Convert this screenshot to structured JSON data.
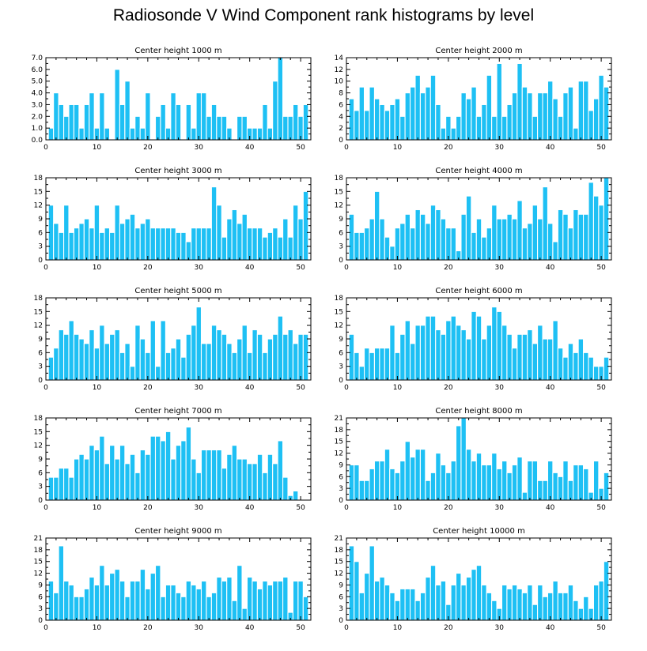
{
  "figure_title": "Radiosonde V Wind Component rank histograms by level",
  "chart_data": [
    {
      "type": "bar",
      "title": "Center height 1000 m",
      "x_start": 1,
      "xlim": [
        0,
        52
      ],
      "xticks": [
        0,
        10,
        20,
        30,
        40,
        50
      ],
      "ylim": [
        0,
        7
      ],
      "yticks": [
        0,
        1,
        2,
        3,
        4,
        5,
        6,
        7
      ],
      "ytick_labels": [
        "0.0",
        "1.0",
        "2.0",
        "3.0",
        "4.0",
        "5.0",
        "6.0",
        "7.0"
      ],
      "values": [
        1,
        4,
        3,
        2,
        3,
        3,
        1,
        3,
        4,
        1,
        4,
        1,
        0,
        6,
        3,
        5,
        1,
        2,
        1,
        4,
        0,
        2,
        3,
        1,
        4,
        3,
        0,
        3,
        1,
        4,
        4,
        2,
        3,
        2,
        2,
        1,
        0,
        2,
        2,
        1,
        1,
        1,
        3,
        1,
        5,
        7,
        2,
        2,
        3,
        2,
        3
      ]
    },
    {
      "type": "bar",
      "title": "Center height 2000 m",
      "x_start": 1,
      "xlim": [
        0,
        52
      ],
      "xticks": [
        0,
        10,
        20,
        30,
        40,
        50
      ],
      "ylim": [
        0,
        14
      ],
      "yticks": [
        0,
        2,
        4,
        6,
        8,
        10,
        12,
        14
      ],
      "ytick_labels": [
        "0",
        "2",
        "4",
        "6",
        "8",
        "10",
        "12",
        "14"
      ],
      "values": [
        7,
        5,
        9,
        5,
        9,
        7,
        6,
        5,
        6,
        7,
        4,
        8,
        9,
        11,
        8,
        9,
        11,
        6,
        2,
        4,
        2,
        4,
        8,
        7,
        9,
        4,
        6,
        11,
        4,
        13,
        4,
        6,
        8,
        13,
        9,
        8,
        4,
        8,
        8,
        10,
        7,
        4,
        8,
        9,
        2,
        10,
        10,
        5,
        7,
        11,
        9
      ]
    },
    {
      "type": "bar",
      "title": "Center height 3000 m",
      "x_start": 1,
      "xlim": [
        0,
        52
      ],
      "xticks": [
        0,
        10,
        20,
        30,
        40,
        50
      ],
      "ylim": [
        0,
        18
      ],
      "yticks": [
        0,
        3,
        6,
        9,
        12,
        15,
        18
      ],
      "ytick_labels": [
        "0",
        "3",
        "6",
        "9",
        "12",
        "15",
        "18"
      ],
      "values": [
        12,
        8,
        6,
        12,
        6,
        7,
        8,
        9,
        7,
        12,
        6,
        7,
        6,
        12,
        8,
        9,
        10,
        7,
        8,
        9,
        7,
        7,
        7,
        7,
        7,
        6,
        6,
        4,
        7,
        7,
        7,
        7,
        16,
        12,
        5,
        9,
        11,
        8,
        10,
        7,
        7,
        7,
        5,
        6,
        7,
        5,
        9,
        5,
        12,
        9,
        15
      ]
    },
    {
      "type": "bar",
      "title": "Center height 4000 m",
      "x_start": 1,
      "xlim": [
        0,
        52
      ],
      "xticks": [
        0,
        10,
        20,
        30,
        40,
        50
      ],
      "ylim": [
        0,
        18
      ],
      "yticks": [
        0,
        3,
        6,
        9,
        12,
        15,
        18
      ],
      "ytick_labels": [
        "0",
        "3",
        "6",
        "9",
        "12",
        "15",
        "18"
      ],
      "values": [
        10,
        6,
        6,
        7,
        9,
        15,
        9,
        5,
        3,
        7,
        8,
        10,
        7,
        11,
        10,
        8,
        12,
        11,
        9,
        7,
        7,
        2,
        10,
        14,
        6,
        9,
        5,
        7,
        12,
        9,
        9,
        10,
        9,
        13,
        7,
        8,
        12,
        9,
        16,
        8,
        4,
        11,
        10,
        7,
        11,
        10,
        10,
        17,
        14,
        12,
        18
      ]
    },
    {
      "type": "bar",
      "title": "Center height 5000 m",
      "x_start": 1,
      "xlim": [
        0,
        52
      ],
      "xticks": [
        0,
        10,
        20,
        30,
        40,
        50
      ],
      "ylim": [
        0,
        18
      ],
      "yticks": [
        0,
        3,
        6,
        9,
        12,
        15,
        18
      ],
      "ytick_labels": [
        "0",
        "3",
        "6",
        "9",
        "12",
        "15",
        "18"
      ],
      "values": [
        5,
        7,
        11,
        10,
        13,
        10,
        9,
        8,
        11,
        7,
        12,
        8,
        10,
        11,
        6,
        8,
        3,
        12,
        9,
        6,
        13,
        3,
        13,
        6,
        7,
        9,
        5,
        10,
        12,
        16,
        8,
        8,
        12,
        11,
        10,
        8,
        6,
        9,
        12,
        6,
        11,
        10,
        6,
        9,
        10,
        14,
        10,
        11,
        8,
        10,
        10
      ]
    },
    {
      "type": "bar",
      "title": "Center height 6000 m",
      "x_start": 1,
      "xlim": [
        0,
        52
      ],
      "xticks": [
        0,
        10,
        20,
        30,
        40,
        50
      ],
      "ylim": [
        0,
        18
      ],
      "yticks": [
        0,
        3,
        6,
        9,
        12,
        15,
        18
      ],
      "ytick_labels": [
        "0",
        "3",
        "6",
        "9",
        "12",
        "15",
        "18"
      ],
      "values": [
        10,
        6,
        3,
        7,
        6,
        7,
        7,
        7,
        12,
        6,
        10,
        13,
        8,
        12,
        12,
        14,
        14,
        11,
        10,
        13,
        14,
        12,
        11,
        9,
        15,
        14,
        9,
        12,
        16,
        15,
        12,
        10,
        7,
        10,
        10,
        11,
        8,
        12,
        9,
        9,
        13,
        7,
        5,
        8,
        6,
        9,
        6,
        5,
        3,
        3,
        5
      ]
    },
    {
      "type": "bar",
      "title": "Center height 7000 m",
      "x_start": 1,
      "xlim": [
        0,
        52
      ],
      "xticks": [
        0,
        10,
        20,
        30,
        40,
        50
      ],
      "ylim": [
        0,
        18
      ],
      "yticks": [
        0,
        3,
        6,
        9,
        12,
        15,
        18
      ],
      "ytick_labels": [
        "0",
        "3",
        "6",
        "9",
        "12",
        "15",
        "18"
      ],
      "values": [
        5,
        5,
        7,
        7,
        5,
        9,
        10,
        9,
        12,
        11,
        14,
        8,
        12,
        9,
        12,
        8,
        10,
        6,
        11,
        10,
        14,
        14,
        13,
        15,
        9,
        12,
        13,
        16,
        9,
        6,
        11,
        11,
        11,
        11,
        7,
        10,
        12,
        9,
        9,
        8,
        8,
        10,
        6,
        10,
        8,
        13,
        5,
        1,
        2
      ]
    },
    {
      "type": "bar",
      "title": "Center height 8000 m",
      "x_start": 1,
      "xlim": [
        0,
        52
      ],
      "xticks": [
        0,
        10,
        20,
        30,
        40,
        50
      ],
      "ylim": [
        0,
        21
      ],
      "yticks": [
        0,
        3,
        6,
        9,
        12,
        15,
        18,
        21
      ],
      "ytick_labels": [
        "0",
        "3",
        "6",
        "9",
        "12",
        "15",
        "18",
        "21"
      ],
      "values": [
        9,
        9,
        5,
        5,
        8,
        10,
        10,
        13,
        8,
        7,
        10,
        15,
        11,
        13,
        13,
        5,
        7,
        12,
        9,
        7,
        10,
        19,
        21,
        13,
        10,
        12,
        9,
        9,
        12,
        8,
        10,
        7,
        9,
        11,
        2,
        10,
        10,
        5,
        5,
        10,
        7,
        6,
        10,
        5,
        9,
        9,
        8,
        2,
        10,
        3,
        7
      ]
    },
    {
      "type": "bar",
      "title": "Center height 9000 m",
      "x_start": 1,
      "xlim": [
        0,
        52
      ],
      "xticks": [
        0,
        10,
        20,
        30,
        40,
        50
      ],
      "ylim": [
        0,
        21
      ],
      "yticks": [
        0,
        3,
        6,
        9,
        12,
        15,
        18,
        21
      ],
      "ytick_labels": [
        "0",
        "3",
        "6",
        "9",
        "12",
        "15",
        "18",
        "21"
      ],
      "values": [
        10,
        7,
        19,
        10,
        9,
        6,
        6,
        8,
        11,
        9,
        14,
        9,
        12,
        13,
        10,
        6,
        10,
        10,
        13,
        8,
        12,
        14,
        6,
        9,
        9,
        7,
        6,
        10,
        9,
        8,
        10,
        6,
        7,
        11,
        10,
        11,
        5,
        14,
        3,
        11,
        10,
        8,
        10,
        9,
        10,
        10,
        11,
        2,
        10,
        10,
        6
      ]
    },
    {
      "type": "bar",
      "title": "Center height 10000 m",
      "x_start": 1,
      "xlim": [
        0,
        52
      ],
      "xticks": [
        0,
        10,
        20,
        30,
        40,
        50
      ],
      "ylim": [
        0,
        21
      ],
      "yticks": [
        0,
        3,
        6,
        9,
        12,
        15,
        18,
        21
      ],
      "ytick_labels": [
        "0",
        "3",
        "6",
        "9",
        "12",
        "15",
        "18",
        "21"
      ],
      "values": [
        19,
        15,
        7,
        12,
        19,
        10,
        11,
        9,
        7,
        5,
        8,
        8,
        8,
        5,
        7,
        11,
        14,
        9,
        10,
        4,
        9,
        12,
        9,
        11,
        13,
        14,
        9,
        7,
        5,
        3,
        9,
        8,
        9,
        8,
        7,
        9,
        4,
        9,
        6,
        7,
        10,
        7,
        7,
        9,
        5,
        3,
        6,
        3,
        9,
        10,
        15
      ]
    }
  ],
  "colors": {
    "bar": "#1ec0f4",
    "bar_stroke": "#ffffff",
    "axis": "#000000"
  }
}
